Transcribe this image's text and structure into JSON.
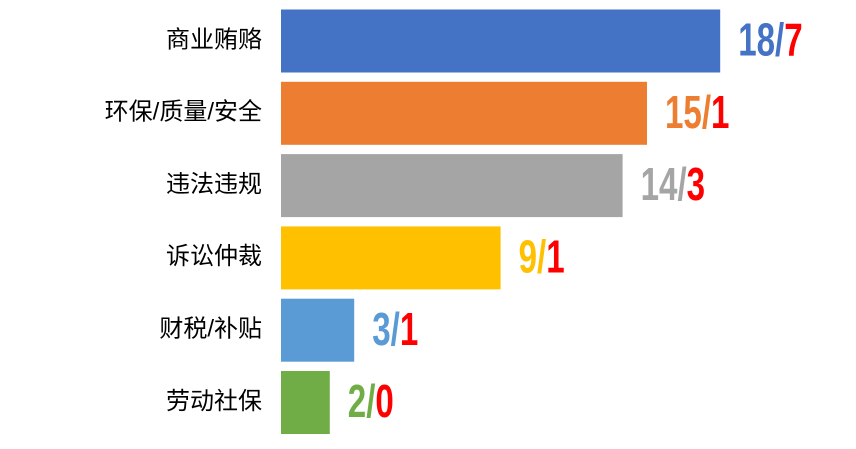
{
  "chart_data": {
    "type": "bar",
    "orientation": "horizontal",
    "categories": [
      "商业贿赂",
      "环保/质量/安全",
      "违法违规",
      "诉讼仲裁",
      "财税/补贴",
      "劳动社保"
    ],
    "values": [
      18,
      15,
      14,
      9,
      3,
      2
    ],
    "colors": [
      "#4472c4",
      "#ed7d31",
      "#a5a5a5",
      "#ffc000",
      "#5b9bd5",
      "#70ad47"
    ],
    "separator": "/",
    "counts": [
      7,
      1,
      3,
      1,
      1,
      0
    ],
    "count_color": "#ff0000",
    "xlim": [
      0,
      20
    ]
  }
}
